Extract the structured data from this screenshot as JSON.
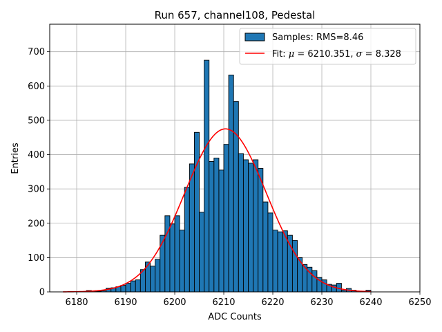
{
  "chart_data": {
    "type": "bar",
    "title": "Run 657, channel108, Pedestal",
    "xlabel": "ADC Counts",
    "ylabel": "Entries",
    "xlim": [
      6174.5,
      6250
    ],
    "ylim": [
      0,
      780
    ],
    "xticks": [
      6180,
      6190,
      6200,
      6210,
      6220,
      6230,
      6240,
      6250
    ],
    "yticks": [
      0,
      100,
      200,
      300,
      400,
      500,
      600,
      700
    ],
    "grid": true,
    "legend_position": "top-right",
    "bin_width": 1,
    "histogram": {
      "name": "Samples: RMS=8.46",
      "color": "#1f77b4",
      "edge_color": "#000000",
      "bin_starts": [
        6182,
        6183,
        6184,
        6185,
        6186,
        6187,
        6188,
        6189,
        6190,
        6191,
        6192,
        6193,
        6194,
        6195,
        6196,
        6197,
        6198,
        6199,
        6200,
        6201,
        6202,
        6203,
        6204,
        6205,
        6206,
        6207,
        6208,
        6209,
        6210,
        6211,
        6212,
        6213,
        6214,
        6215,
        6216,
        6217,
        6218,
        6219,
        6220,
        6221,
        6222,
        6223,
        6224,
        6225,
        6226,
        6227,
        6228,
        6229,
        6230,
        6231,
        6232,
        6233,
        6234,
        6235,
        6236,
        6237,
        6238,
        6239
      ],
      "counts": [
        4,
        2,
        2,
        3,
        11,
        12,
        15,
        19,
        25,
        32,
        35,
        65,
        87,
        75,
        95,
        165,
        222,
        198,
        222,
        180,
        305,
        373,
        465,
        232,
        675,
        380,
        390,
        355,
        430,
        632,
        555,
        403,
        385,
        375,
        385,
        360,
        262,
        230,
        180,
        175,
        178,
        165,
        150,
        100,
        80,
        72,
        62,
        42,
        35,
        22,
        20,
        25,
        5,
        10,
        5,
        2,
        1,
        5
      ]
    },
    "fit": {
      "name_parts": [
        "Fit: ",
        "μ",
        " = 6210.351, ",
        "σ",
        " = 8.328"
      ],
      "mu": 6210.351,
      "sigma": 8.328,
      "amplitude": 475,
      "x_range": [
        6177.2,
        6240
      ],
      "color": "#ff0000"
    }
  }
}
